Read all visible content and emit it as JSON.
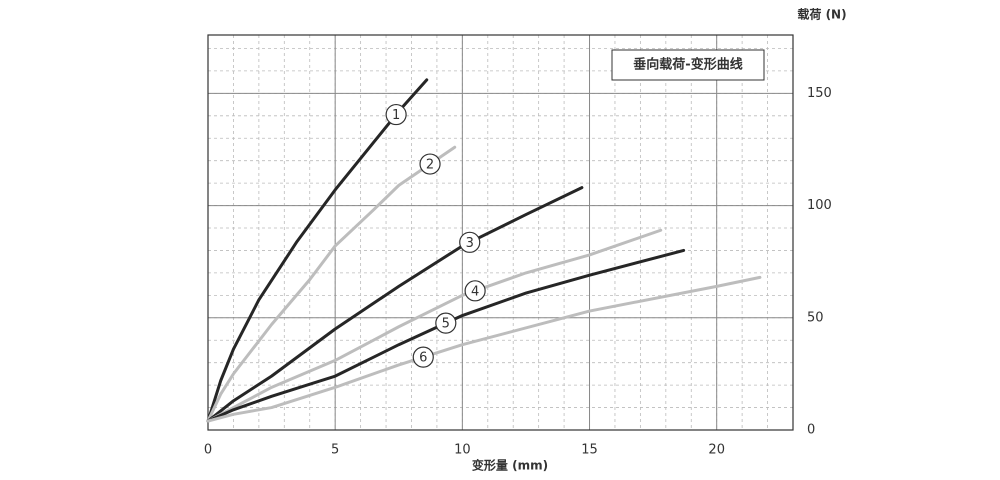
{
  "chart_data": {
    "type": "line",
    "title": "垂向载荷-变形曲线",
    "x_label": "变形量 (mm)",
    "y_label": "载荷 (N)",
    "xlim": [
      0,
      23
    ],
    "ylim": [
      0,
      176
    ],
    "xticks": [
      0,
      5,
      10,
      15,
      20
    ],
    "yticks": [
      0,
      50,
      100,
      150
    ],
    "grid": true,
    "minor_grid": true,
    "y_axis_side": "right",
    "series": [
      {
        "name": "1",
        "color": "#262626",
        "x": [
          0,
          0.5,
          1,
          2,
          3.5,
          5,
          6.5,
          7.5,
          8.6
        ],
        "values": [
          4,
          22,
          36,
          58,
          84,
          107,
          128,
          142,
          156
        ]
      },
      {
        "name": "2",
        "color": "#bdbdbd",
        "x": [
          0,
          0.5,
          1,
          2.5,
          4,
          5,
          6.5,
          7.5,
          9.7
        ],
        "values": [
          4,
          16,
          25,
          47,
          67,
          82,
          98,
          109,
          126
        ]
      },
      {
        "name": "3",
        "color": "#262626",
        "x": [
          0,
          1,
          2.5,
          5,
          7.5,
          10,
          12.5,
          14.7
        ],
        "values": [
          4,
          13,
          24,
          45,
          64,
          82,
          96,
          108
        ]
      },
      {
        "name": "4",
        "color": "#bdbdbd",
        "x": [
          0,
          1,
          2.5,
          5,
          7.5,
          10,
          12.5,
          15,
          17.8
        ],
        "values": [
          4,
          10,
          19,
          31,
          46,
          60,
          70,
          78,
          89
        ]
      },
      {
        "name": "5",
        "color": "#262626",
        "x": [
          0,
          1,
          2.5,
          5,
          7.5,
          10,
          12.5,
          15,
          18.7
        ],
        "values": [
          4,
          9,
          15,
          24,
          38,
          51,
          61,
          69,
          80
        ]
      },
      {
        "name": "6",
        "color": "#bdbdbd",
        "x": [
          0,
          1,
          2.5,
          5,
          7.5,
          10,
          15,
          20,
          21.7
        ],
        "values": [
          4,
          7,
          10,
          19,
          29,
          38,
          53,
          64,
          68
        ]
      }
    ]
  }
}
